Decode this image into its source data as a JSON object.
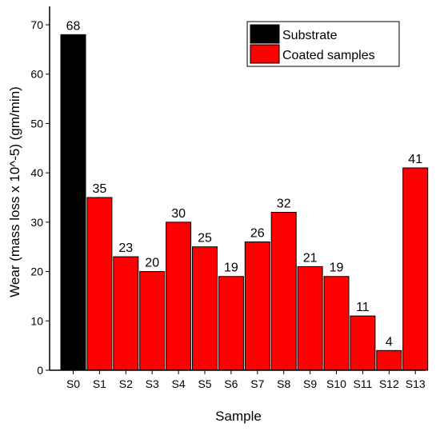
{
  "chart_data": {
    "type": "bar",
    "categories": [
      "S0",
      "S1",
      "S2",
      "S3",
      "S4",
      "S5",
      "S6",
      "S7",
      "S8",
      "S9",
      "S10",
      "S11",
      "S12",
      "S13"
    ],
    "values": [
      68,
      35,
      23,
      20,
      30,
      25,
      19,
      26,
      32,
      21,
      19,
      11,
      4,
      41
    ],
    "series_assignment": [
      "Substrate",
      "Coated samples",
      "Coated samples",
      "Coated samples",
      "Coated samples",
      "Coated samples",
      "Coated samples",
      "Coated samples",
      "Coated samples",
      "Coated samples",
      "Coated samples",
      "Coated samples",
      "Coated samples",
      "Coated samples"
    ],
    "legend": [
      {
        "name": "Substrate",
        "color": "#000000"
      },
      {
        "name": "Coated samples",
        "color": "#ff0000"
      }
    ],
    "legend_position": "top-right",
    "xlabel": "Sample",
    "ylabel": "Wear (mass loss x 10^-5) (gm/min)",
    "ylim": [
      0,
      70
    ],
    "yticks": [
      0,
      10,
      20,
      30,
      40,
      50,
      60,
      70
    ],
    "grid": false
  }
}
